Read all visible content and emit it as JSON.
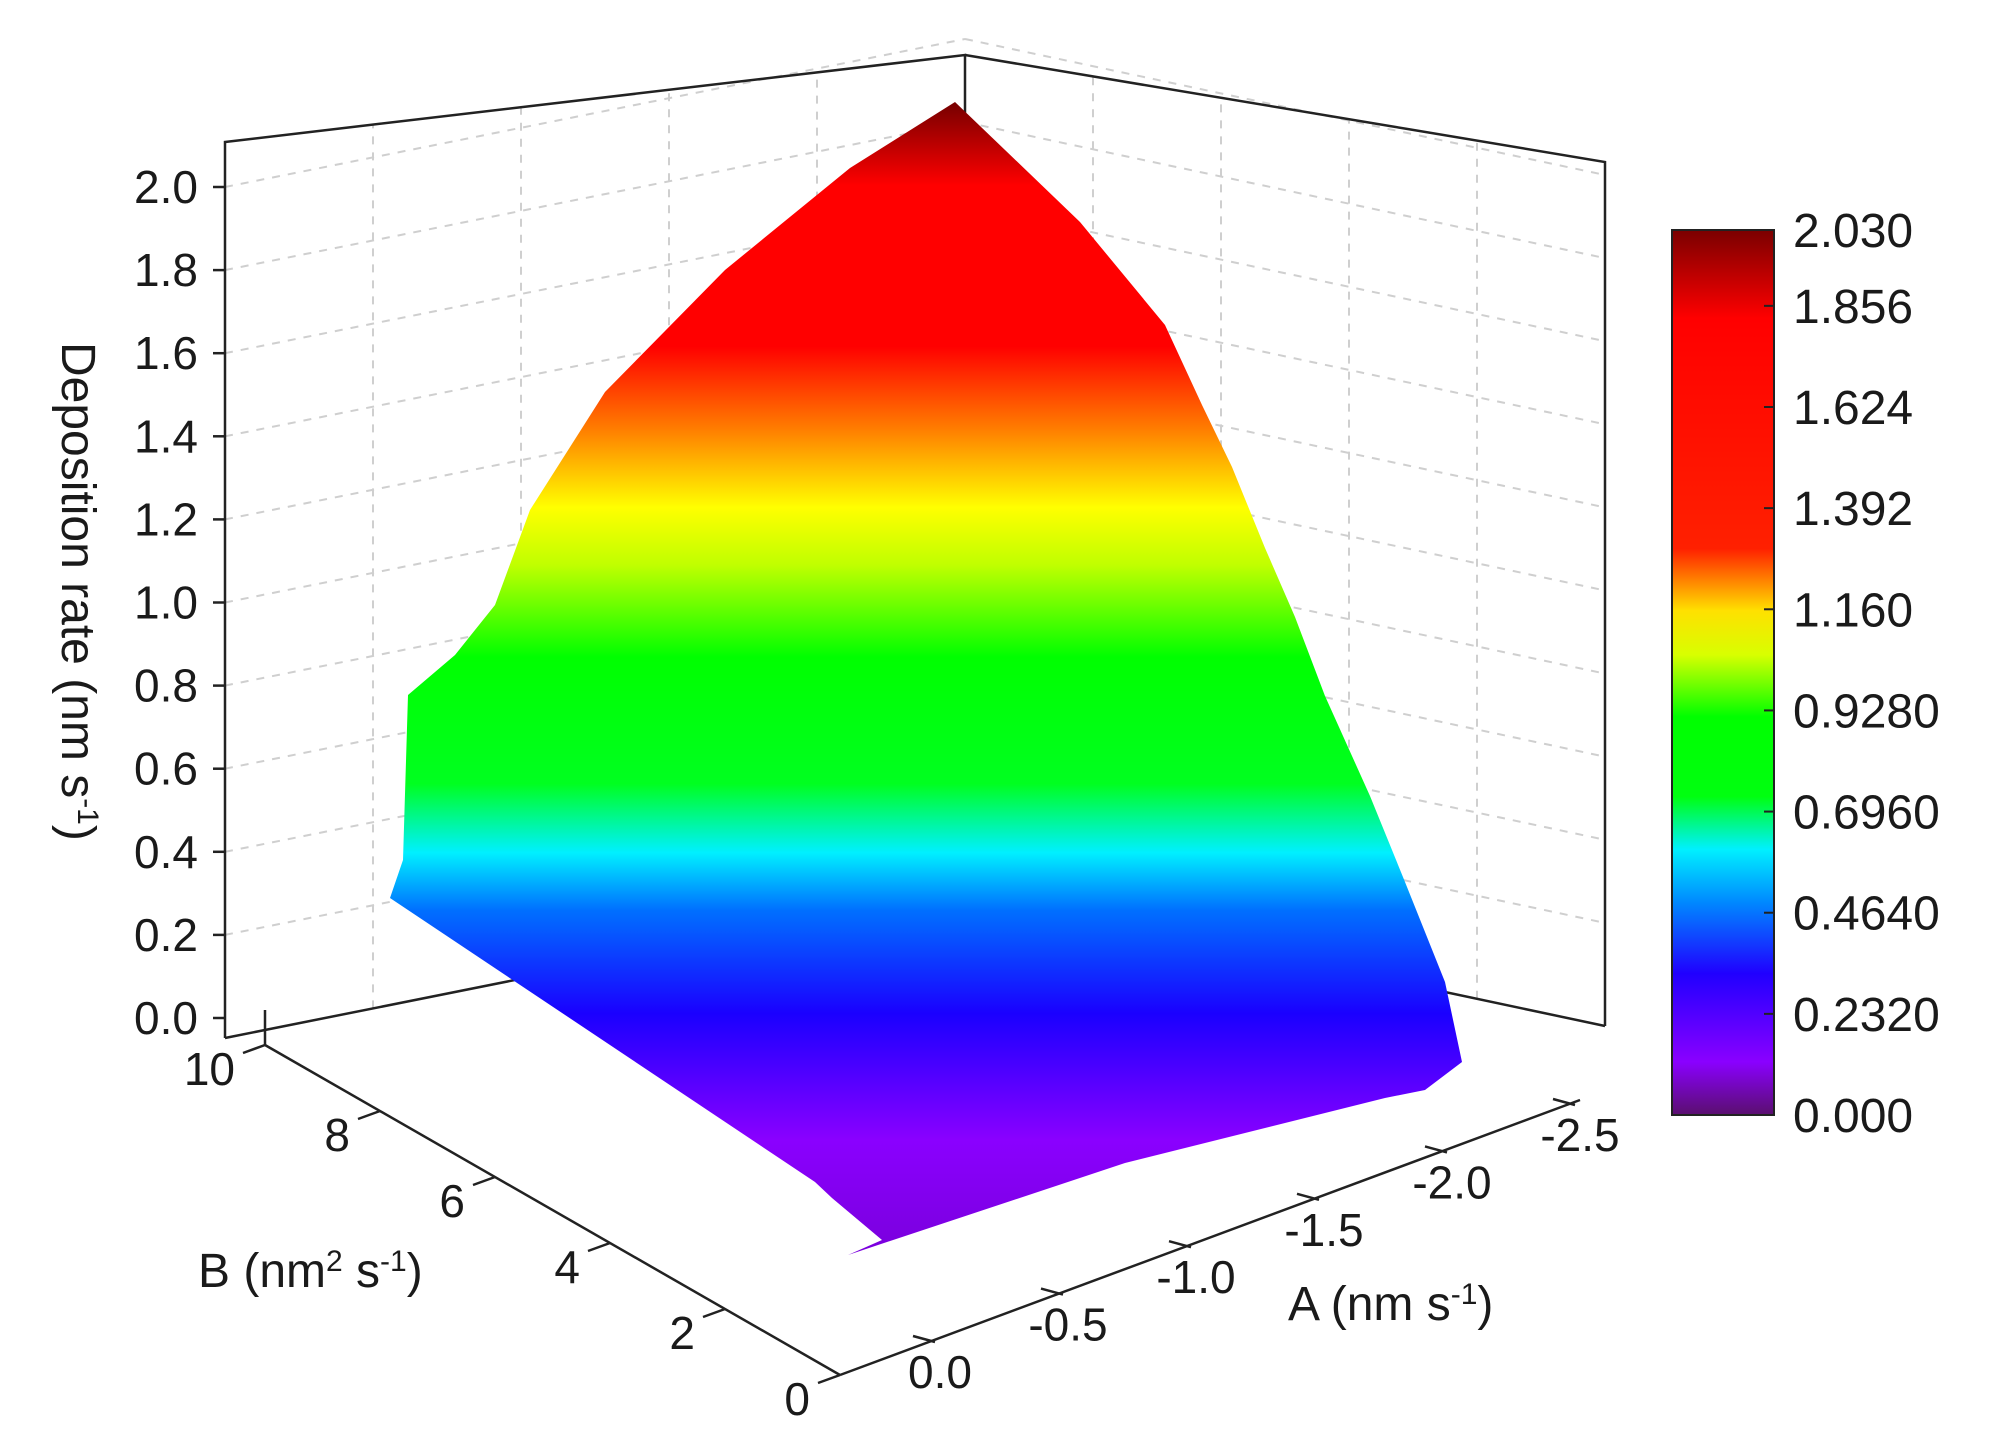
{
  "chart_data": {
    "type": "surface3d",
    "title": "",
    "z_axis": {
      "label": "Deposition rate (nm s",
      "label_sup": "-1",
      "label_end": ")",
      "range": [
        0.0,
        2.1
      ],
      "ticks": [
        "0.0",
        "0.2",
        "0.4",
        "0.6",
        "0.8",
        "1.0",
        "1.2",
        "1.4",
        "1.6",
        "1.8",
        "2.0"
      ]
    },
    "b_axis": {
      "label": "B (nm",
      "label_sup1": "2",
      "label_mid": " s",
      "label_sup2": "-1",
      "label_end": ")",
      "range": [
        0,
        10
      ],
      "ticks": [
        "0",
        "2",
        "4",
        "6",
        "8",
        "10"
      ]
    },
    "a_axis": {
      "label": "A (nm s",
      "label_sup": "-1",
      "label_end": ")",
      "range": [
        0.0,
        -2.5
      ],
      "ticks": [
        "0.0",
        "-0.5",
        "-1.0",
        "-1.5",
        "-2.0",
        "-2.5"
      ]
    },
    "colorbar": {
      "min": 0.0,
      "max": 2.03,
      "labels": [
        "0.000",
        "0.2320",
        "0.4640",
        "0.6960",
        "0.9280",
        "1.160",
        "1.392",
        "1.624",
        "1.856",
        "2.030"
      ],
      "colors": [
        "#5a0f6e",
        "#8a00ff",
        "#1500ff",
        "#00f0ff",
        "#00ff10",
        "#ffff00",
        "#ff1400",
        "#ff0000",
        "#8b0000"
      ]
    },
    "surface": {
      "description_points": "z values at grid corners (A, B, rate)",
      "points": [
        {
          "A": 0.0,
          "B": 0,
          "rate": 0.02
        },
        {
          "A": 0.0,
          "B": 10,
          "rate": 0.22
        },
        {
          "A": -2.5,
          "B": 0,
          "rate": 0.03
        },
        {
          "A": -2.5,
          "B": 10,
          "rate": 2.03
        }
      ]
    },
    "grid": true
  }
}
